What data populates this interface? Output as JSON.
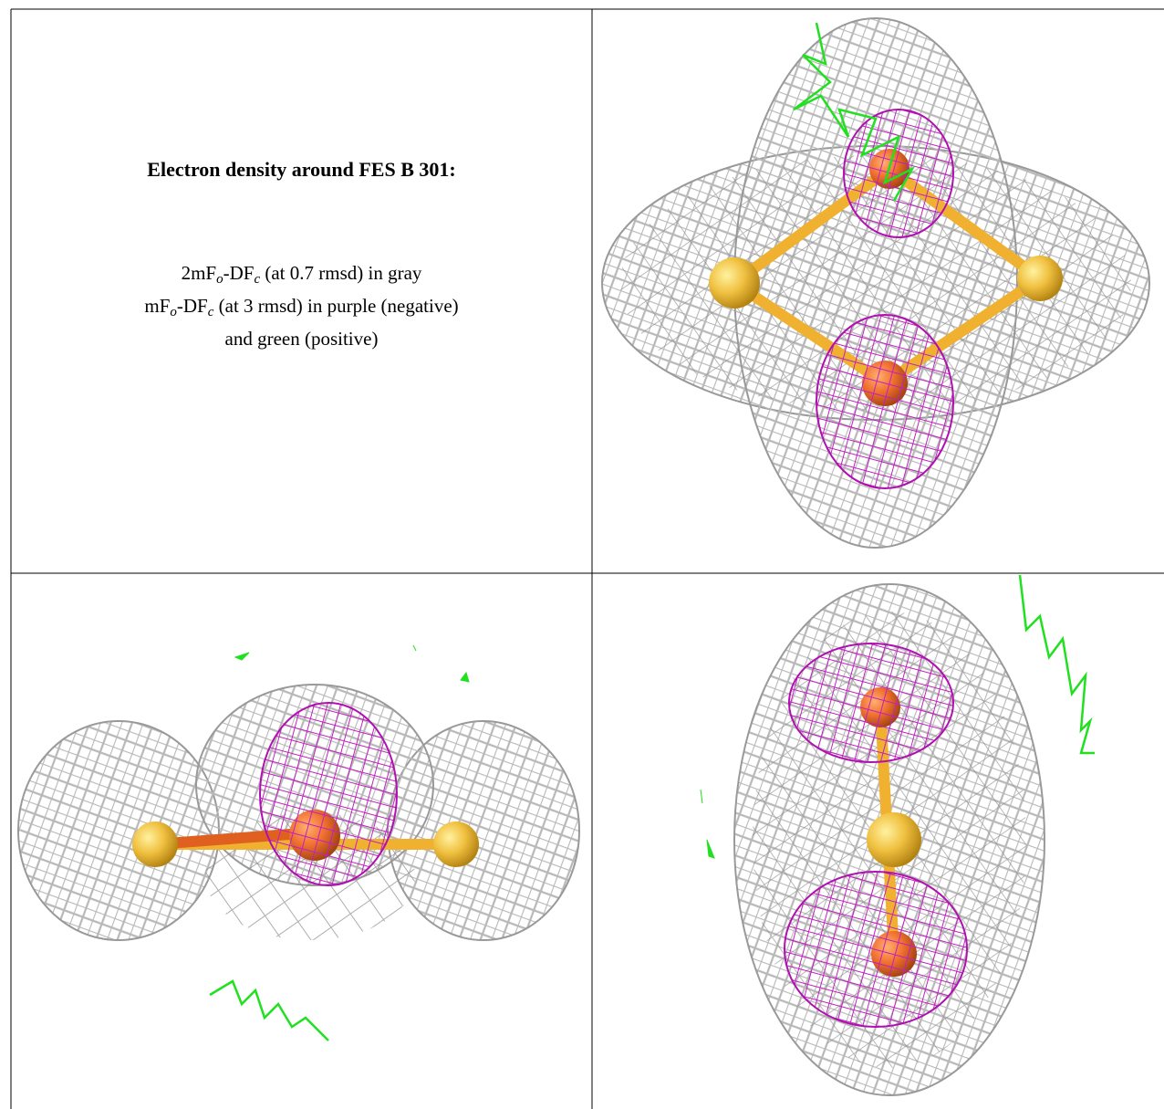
{
  "caption": {
    "title": "Electron density around FES B 301:",
    "lines": [
      [
        "2mF",
        "o",
        "-DF",
        "c",
        " (at 0.7 rmsd) in gray"
      ],
      [
        "mF",
        "o",
        "-DF",
        "c",
        " (at 3 rmsd) in purple (negative)"
      ],
      [
        "and green (positive)"
      ]
    ]
  }
}
